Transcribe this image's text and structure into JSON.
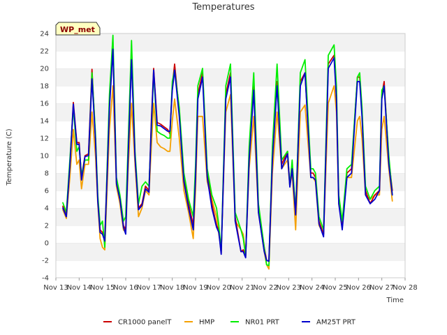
{
  "chart_data": {
    "type": "line",
    "title": "Temperatures",
    "xlabel": "Time",
    "ylabel": "Temperature (C)",
    "badge": "WP_met",
    "ylim": [
      -4,
      24
    ],
    "xlim": [
      13,
      28
    ],
    "yticks": [
      -4,
      -2,
      0,
      2,
      4,
      6,
      8,
      10,
      12,
      14,
      16,
      18,
      20,
      22,
      24
    ],
    "xticks": [
      {
        "value": 13,
        "label": "Nov 13"
      },
      {
        "value": 14,
        "label": "Nov 14"
      },
      {
        "value": 15,
        "label": "Nov 15"
      },
      {
        "value": 16,
        "label": "Nov 16"
      },
      {
        "value": 17,
        "label": "Nov 17"
      },
      {
        "value": 18,
        "label": "Nov 18"
      },
      {
        "value": 19,
        "label": "Nov 19"
      },
      {
        "value": 20,
        "label": "Nov 20"
      },
      {
        "value": 21,
        "label": "Nov 21"
      },
      {
        "value": 22,
        "label": "Nov 22"
      },
      {
        "value": 23,
        "label": "Nov 23"
      },
      {
        "value": 24,
        "label": "Nov 24"
      },
      {
        "value": 25,
        "label": "Nov 25"
      },
      {
        "value": 26,
        "label": "Nov 26"
      },
      {
        "value": 27,
        "label": "Nov 27"
      },
      {
        "value": 28,
        "label": "Nov 28"
      }
    ],
    "grid": "horizontal bands",
    "legend_position": "bottom",
    "series": [
      {
        "name": "CR1000 panelT",
        "color": "#cc0000",
        "x": [
          13.3,
          13.45,
          13.6,
          13.75,
          13.9,
          14.0,
          14.1,
          14.25,
          14.4,
          14.55,
          14.7,
          14.8,
          14.9,
          15.0,
          15.1,
          15.2,
          15.3,
          15.45,
          15.6,
          15.75,
          15.9,
          16.0,
          16.1,
          16.25,
          16.4,
          16.55,
          16.7,
          16.85,
          17.0,
          17.1,
          17.2,
          17.35,
          17.5,
          17.65,
          17.8,
          17.9,
          18.0,
          18.1,
          18.3,
          18.5,
          18.7,
          18.9,
          19.0,
          19.1,
          19.3,
          19.5,
          19.7,
          19.9,
          20.0,
          20.1,
          20.3,
          20.5,
          20.7,
          20.95,
          21.05,
          21.15,
          21.3,
          21.5,
          21.7,
          21.95,
          22.05,
          22.15,
          22.3,
          22.5,
          22.7,
          22.95,
          23.05,
          23.15,
          23.3,
          23.5,
          23.7,
          23.95,
          24.05,
          24.15,
          24.3,
          24.5,
          24.7,
          24.95,
          25.05,
          25.15,
          25.3,
          25.5,
          25.7,
          25.95,
          26.05,
          26.15,
          26.3,
          26.5,
          26.7,
          26.9,
          27.0,
          27.1,
          27.3,
          27.45
        ],
        "y": [
          4.2,
          3.2,
          9.0,
          16.1,
          11.5,
          11.5,
          7.5,
          10.0,
          10.2,
          19.9,
          12.0,
          5.0,
          1.5,
          1.2,
          0.6,
          8.0,
          16.0,
          22.5,
          7.0,
          5.2,
          2.0,
          1.5,
          10.0,
          21.2,
          10.0,
          4.0,
          4.5,
          6.5,
          6.0,
          14.0,
          20.0,
          13.8,
          13.6,
          13.3,
          13.0,
          12.5,
          18.0,
          20.5,
          15.0,
          7.5,
          4.5,
          2.0,
          8.0,
          17.0,
          19.5,
          8.0,
          4.5,
          2.0,
          1.5,
          -1.2,
          17.0,
          19.5,
          3.0,
          -1.0,
          -0.8,
          -1.6,
          10.0,
          18.0,
          4.0,
          -0.5,
          -2.0,
          -2.1,
          10.0,
          18.5,
          9.0,
          10.5,
          6.7,
          9.0,
          3.5,
          18.5,
          19.5,
          8.0,
          8.0,
          7.5,
          2.5,
          1.0,
          20.5,
          21.5,
          17.0,
          5.0,
          2.0,
          8.0,
          8.5,
          19.0,
          19.0,
          15.0,
          6.0,
          4.5,
          5.5,
          6.0,
          17.0,
          18.5,
          9.5,
          6.0
        ]
      },
      {
        "name": "HMP",
        "color": "#f5a000",
        "x": [
          13.3,
          13.45,
          13.6,
          13.75,
          13.9,
          14.0,
          14.1,
          14.25,
          14.4,
          14.55,
          14.7,
          14.8,
          14.9,
          15.0,
          15.1,
          15.2,
          15.3,
          15.45,
          15.6,
          15.75,
          15.9,
          16.0,
          16.1,
          16.25,
          16.4,
          16.55,
          16.7,
          16.85,
          17.0,
          17.1,
          17.2,
          17.35,
          17.5,
          17.65,
          17.8,
          17.9,
          18.0,
          18.1,
          18.3,
          18.5,
          18.7,
          18.9,
          19.0,
          19.1,
          19.3,
          19.5,
          19.7,
          19.9,
          20.0,
          20.1,
          20.3,
          20.5,
          20.7,
          20.95,
          21.05,
          21.15,
          21.3,
          21.5,
          21.7,
          21.95,
          22.05,
          22.15,
          22.3,
          22.5,
          22.7,
          22.95,
          23.05,
          23.15,
          23.3,
          23.5,
          23.7,
          23.95,
          24.05,
          24.15,
          24.3,
          24.5,
          24.7,
          24.95,
          25.05,
          25.15,
          25.3,
          25.5,
          25.7,
          25.95,
          26.05,
          26.15,
          26.3,
          26.5,
          26.7,
          26.9,
          27.0,
          27.1,
          27.3,
          27.45
        ],
        "y": [
          3.8,
          2.8,
          7.5,
          13.0,
          9.0,
          9.5,
          6.2,
          9.0,
          9.0,
          15.0,
          10.0,
          4.5,
          0.5,
          -0.5,
          -0.8,
          6.0,
          13.0,
          18.0,
          6.5,
          4.5,
          1.5,
          1.2,
          8.0,
          16.0,
          9.0,
          3.0,
          4.0,
          6.0,
          5.5,
          11.0,
          16.0,
          11.5,
          11.0,
          10.8,
          10.5,
          10.5,
          14.0,
          16.5,
          12.0,
          6.0,
          3.5,
          0.5,
          6.0,
          14.5,
          14.5,
          7.0,
          5.0,
          3.0,
          1.0,
          -0.8,
          15.0,
          17.0,
          2.5,
          1.5,
          1.0,
          -1.3,
          8.5,
          14.5,
          3.5,
          -1.0,
          -2.5,
          -3.0,
          8.0,
          15.0,
          8.5,
          9.5,
          6.5,
          8.0,
          1.5,
          15.0,
          15.8,
          7.5,
          7.5,
          7.0,
          2.0,
          1.0,
          16.0,
          18.0,
          15.0,
          4.5,
          2.0,
          7.5,
          7.5,
          14.0,
          14.5,
          12.0,
          5.5,
          5.0,
          5.5,
          5.5,
          13.0,
          14.5,
          8.5,
          4.8
        ]
      },
      {
        "name": "NR01 PRT",
        "color": "#00ee00",
        "x": [
          13.3,
          13.45,
          13.6,
          13.75,
          13.9,
          14.0,
          14.1,
          14.25,
          14.4,
          14.55,
          14.7,
          14.8,
          14.9,
          15.0,
          15.1,
          15.2,
          15.3,
          15.45,
          15.6,
          15.75,
          15.9,
          16.0,
          16.1,
          16.25,
          16.4,
          16.55,
          16.7,
          16.85,
          17.0,
          17.1,
          17.2,
          17.35,
          17.5,
          17.65,
          17.8,
          17.9,
          18.0,
          18.1,
          18.3,
          18.5,
          18.7,
          18.9,
          19.0,
          19.1,
          19.3,
          19.5,
          19.7,
          19.9,
          20.0,
          20.1,
          20.3,
          20.5,
          20.7,
          20.95,
          21.05,
          21.15,
          21.3,
          21.5,
          21.7,
          21.95,
          22.05,
          22.15,
          22.3,
          22.5,
          22.7,
          22.95,
          23.05,
          23.15,
          23.3,
          23.5,
          23.7,
          23.95,
          24.05,
          24.15,
          24.3,
          24.5,
          24.7,
          24.95,
          25.05,
          25.15,
          25.3,
          25.5,
          25.7,
          25.95,
          26.05,
          26.15,
          26.3,
          26.5,
          26.7,
          26.9,
          27.0,
          27.1,
          27.3,
          27.45
        ],
        "y": [
          4.6,
          3.5,
          9.5,
          15.5,
          10.5,
          11.0,
          7.8,
          9.5,
          9.5,
          19.5,
          12.5,
          5.5,
          2.0,
          2.5,
          -0.5,
          8.5,
          17.0,
          23.8,
          7.5,
          5.5,
          2.5,
          3.0,
          11.0,
          23.2,
          10.5,
          4.5,
          6.5,
          7.0,
          6.5,
          13.0,
          19.5,
          12.8,
          12.5,
          12.3,
          12.0,
          12.0,
          18.5,
          19.8,
          15.5,
          8.0,
          5.0,
          3.0,
          9.0,
          18.0,
          20.0,
          8.5,
          5.5,
          4.0,
          2.0,
          -1.0,
          18.0,
          20.5,
          3.5,
          1.5,
          0.5,
          -1.5,
          11.0,
          19.5,
          4.5,
          -0.5,
          -2.5,
          -2.6,
          11.0,
          20.5,
          9.5,
          10.5,
          6.5,
          9.5,
          3.5,
          19.5,
          21.0,
          8.5,
          8.5,
          8.0,
          3.0,
          1.5,
          21.5,
          22.7,
          18.0,
          5.5,
          2.5,
          8.5,
          9.0,
          19.0,
          19.5,
          15.5,
          6.5,
          5.0,
          6.0,
          6.5,
          17.5,
          18.0,
          10.0,
          5.5
        ]
      },
      {
        "name": "AM25T PRT",
        "color": "#0000cc",
        "x": [
          13.3,
          13.45,
          13.6,
          13.75,
          13.9,
          14.0,
          14.1,
          14.25,
          14.4,
          14.55,
          14.7,
          14.8,
          14.9,
          15.0,
          15.1,
          15.2,
          15.3,
          15.45,
          15.6,
          15.75,
          15.9,
          16.0,
          16.1,
          16.25,
          16.4,
          16.55,
          16.7,
          16.85,
          17.0,
          17.1,
          17.2,
          17.35,
          17.5,
          17.65,
          17.8,
          17.9,
          18.0,
          18.1,
          18.3,
          18.5,
          18.7,
          18.9,
          19.0,
          19.1,
          19.3,
          19.5,
          19.7,
          19.9,
          20.0,
          20.1,
          20.3,
          20.5,
          20.7,
          20.95,
          21.05,
          21.15,
          21.3,
          21.5,
          21.7,
          21.95,
          22.05,
          22.15,
          22.3,
          22.5,
          22.7,
          22.95,
          23.05,
          23.15,
          23.3,
          23.5,
          23.7,
          23.95,
          24.05,
          24.15,
          24.3,
          24.5,
          24.7,
          24.95,
          25.05,
          25.15,
          25.3,
          25.5,
          25.7,
          25.95,
          26.05,
          26.15,
          26.3,
          26.5,
          26.7,
          26.9,
          27.0,
          27.1,
          27.3,
          27.45
        ],
        "y": [
          4.0,
          3.0,
          8.8,
          15.9,
          11.3,
          11.3,
          7.2,
          9.9,
          10.0,
          18.8,
          11.8,
          4.8,
          1.2,
          1.0,
          0.2,
          7.5,
          15.5,
          22.2,
          6.8,
          5.0,
          1.8,
          1.0,
          9.5,
          21.0,
          9.8,
          3.8,
          4.3,
          6.2,
          5.8,
          13.5,
          19.8,
          13.5,
          13.4,
          13.1,
          12.8,
          12.8,
          17.5,
          19.8,
          14.5,
          7.0,
          4.0,
          1.5,
          7.5,
          16.5,
          19.0,
          7.5,
          4.0,
          1.8,
          1.2,
          -1.3,
          16.5,
          19.0,
          2.5,
          -1.0,
          -1.0,
          -1.7,
          9.5,
          17.5,
          3.5,
          -1.0,
          -2.0,
          -2.1,
          9.5,
          18.0,
          8.5,
          10.2,
          6.4,
          8.5,
          3.2,
          18.0,
          19.5,
          7.5,
          7.5,
          7.2,
          2.2,
          0.7,
          20.0,
          21.2,
          16.5,
          4.5,
          1.5,
          7.5,
          8.0,
          18.5,
          18.5,
          14.5,
          5.5,
          4.5,
          5.0,
          6.0,
          16.5,
          18.0,
          9.0,
          5.5
        ]
      }
    ]
  }
}
